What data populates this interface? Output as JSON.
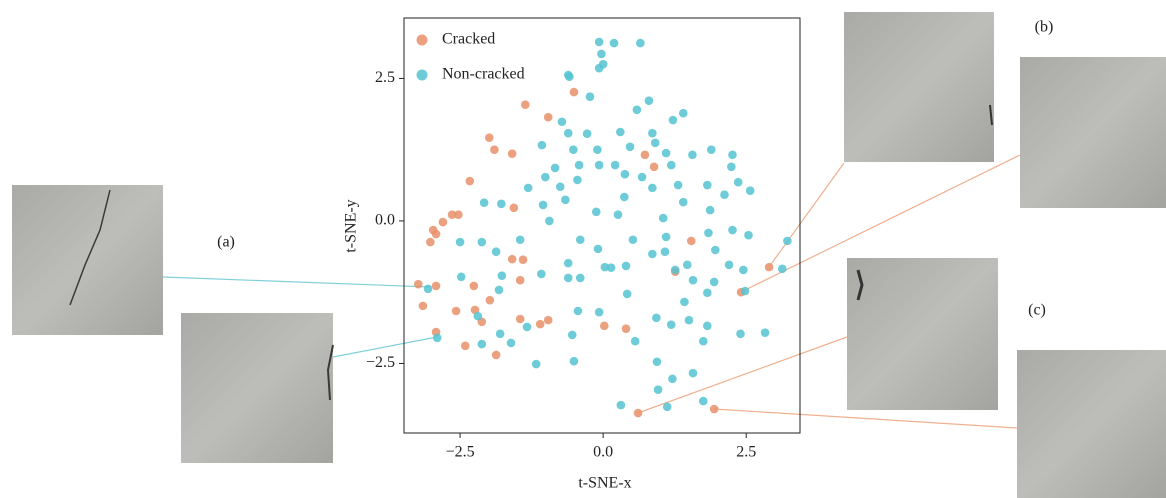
{
  "chart_data": {
    "type": "scatter",
    "x_label": "t-SNE-x",
    "y_label": "t-SNE-y",
    "xlim": [
      -3.48,
      3.44
    ],
    "ylim": [
      -3.72,
      3.56
    ],
    "xticks": [
      {
        "value": -2.5,
        "label": "−2.5"
      },
      {
        "value": 0,
        "label": "0.0"
      },
      2.5
    ],
    "yticks": [
      {
        "value": -2.5,
        "label": "−2.5"
      },
      {
        "value": 0,
        "label": "0.0"
      },
      2.5
    ],
    "legend": "upper left",
    "annotations": [
      "(a)",
      "(b)",
      "(c)"
    ],
    "series": [
      {
        "name": "Cracked",
        "color": "#e8906a",
        "x": [
          -0.51,
          -1.36,
          -0.96,
          -1.99,
          -1.9,
          -1.59,
          0.73,
          0.89,
          -2.33,
          -1.56,
          -2.64,
          -2.53,
          -2.8,
          -2.97,
          -2.92,
          -3.02,
          1.54,
          -1.59,
          -1.4,
          2.9,
          1.26,
          -3.23,
          -2.92,
          -2.26,
          -1.45,
          2.41,
          -1.98,
          -3.15,
          -2.24,
          -2.57,
          -0.96,
          -1.45,
          -2.12,
          -1.1,
          0.02,
          0.4,
          -2.92,
          -2.41,
          -1.87,
          0.61,
          1.94
        ],
        "values": [
          2.26,
          2.04,
          1.82,
          1.46,
          1.25,
          1.18,
          1.16,
          0.95,
          0.7,
          0.23,
          0.11,
          0.11,
          -0.02,
          -0.16,
          -0.23,
          -0.37,
          -0.35,
          -0.67,
          -0.68,
          -0.81,
          -0.89,
          -1.11,
          -1.14,
          -1.14,
          -1.04,
          -1.25,
          -1.39,
          -1.49,
          -1.56,
          -1.58,
          -1.74,
          -1.72,
          -1.77,
          -1.81,
          -1.84,
          -1.89,
          -1.95,
          -2.19,
          -2.35,
          -3.37,
          -3.3
        ]
      },
      {
        "name": "Non-cracked",
        "color": "#55c3d1",
        "x": [
          -0.07,
          0.19,
          0.65,
          -0.03,
          -0.07,
          0,
          -0.61,
          -0.59,
          -0.23,
          0.59,
          0.8,
          1.4,
          1.22,
          -0.72,
          -0.61,
          -0.28,
          0.3,
          0.86,
          0.91,
          -1.07,
          -0.52,
          -0.1,
          0.47,
          1.1,
          1.56,
          1.89,
          2.26,
          1.19,
          2.24,
          -0.84,
          -0.42,
          -0.07,
          0.21,
          0.38,
          0.68,
          -1.01,
          -1.31,
          -0.75,
          -0.45,
          0.86,
          1.31,
          1.82,
          2.36,
          2.57,
          2.12,
          -2.08,
          -1.78,
          -1.05,
          -0.66,
          0.37,
          1.4,
          1.87,
          -0.12,
          0.26,
          -0.94,
          1.05,
          2.26,
          2.54,
          3.22,
          -2.5,
          -2.12,
          -1.45,
          -0.4,
          0.52,
          1.1,
          1.84,
          -1.87,
          -0.09,
          0.86,
          1.08,
          1.96,
          -0.61,
          0.03,
          0.14,
          0.4,
          1.47,
          2.2,
          2.45,
          3.13,
          -2.48,
          -1.77,
          -1.08,
          -0.61,
          -0.4,
          1.26,
          1.57,
          1.94,
          -3.06,
          -1.82,
          0.42,
          1.82,
          2.48,
          1.42,
          -2.19,
          -0.44,
          -0.07,
          0.93,
          1.5,
          1.19,
          1.82,
          2.4,
          2.83,
          -2.9,
          -1.8,
          -1.33,
          -0.54,
          0.56,
          1.75,
          -2.12,
          -1.61,
          -1.17,
          -0.51,
          0.94,
          1.57,
          1.21,
          0.96,
          1.75,
          0.31,
          1.12
        ],
        "values": [
          3.14,
          3.12,
          3.12,
          2.93,
          2.68,
          2.75,
          2.56,
          2.53,
          2.18,
          1.95,
          2.11,
          1.89,
          1.77,
          1.74,
          1.54,
          1.53,
          1.56,
          1.54,
          1.37,
          1.33,
          1.25,
          1.25,
          1.3,
          1.19,
          1.16,
          1.25,
          1.16,
          0.98,
          0.95,
          0.93,
          0.98,
          0.98,
          0.98,
          0.82,
          0.77,
          0.77,
          0.58,
          0.6,
          0.72,
          0.58,
          0.63,
          0.63,
          0.68,
          0.53,
          0.46,
          0.32,
          0.3,
          0.28,
          0.37,
          0.42,
          0.33,
          0.19,
          0.16,
          0.11,
          0,
          0.05,
          -0.16,
          -0.25,
          -0.35,
          -0.37,
          -0.37,
          -0.33,
          -0.33,
          -0.33,
          -0.28,
          -0.21,
          -0.54,
          -0.49,
          -0.58,
          -0.54,
          -0.51,
          -0.74,
          -0.81,
          -0.82,
          -0.79,
          -0.77,
          -0.77,
          -0.86,
          -0.84,
          -0.98,
          -0.96,
          -0.93,
          -1.0,
          -1.0,
          -0.86,
          -1.04,
          -1.07,
          -1.19,
          -1.21,
          -1.28,
          -1.26,
          -1.23,
          -1.42,
          -1.67,
          -1.58,
          -1.6,
          -1.7,
          -1.74,
          -1.82,
          -1.84,
          -1.98,
          -1.96,
          -2.05,
          -1.98,
          -1.86,
          -2.0,
          -2.11,
          -2.11,
          -2.16,
          -2.14,
          -2.51,
          -2.46,
          -2.47,
          -2.67,
          -2.77,
          -2.96,
          -3.16,
          -3.23,
          -3.26
        ]
      }
    ]
  }
}
